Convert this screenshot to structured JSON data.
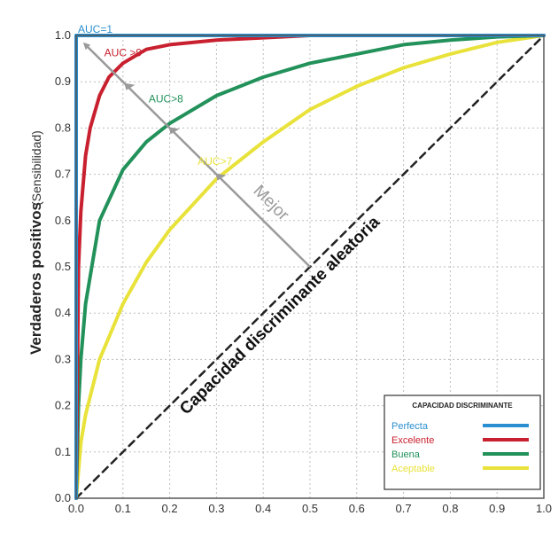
{
  "chart_data": {
    "type": "line",
    "ylabel": "Verdaderos positivos",
    "ylabel_sub": "(Sensibilidad)",
    "xlim": [
      0,
      1
    ],
    "ylim": [
      0,
      1
    ],
    "x_ticks": [
      "0.0",
      "0.1",
      "0.2",
      "0.3",
      "0.4",
      "0.5",
      "0.6",
      "0.7",
      "0.8",
      "0.9",
      "1.0"
    ],
    "y_ticks": [
      "0.0",
      "0.1",
      "0.2",
      "0.3",
      "0.4",
      "0.5",
      "0.6",
      "0.7",
      "0.8",
      "0.9",
      "1.0"
    ],
    "grid": true,
    "series": [
      {
        "name": "Perfecta",
        "annotation": "AUC=1",
        "color": "#2a8fd0",
        "x": [
          0,
          0,
          1
        ],
        "y": [
          0,
          1,
          1
        ]
      },
      {
        "name": "Excelente",
        "annotation": "AUC >9",
        "color": "#c8202e",
        "x": [
          0,
          0.005,
          0.01,
          0.02,
          0.03,
          0.05,
          0.07,
          0.1,
          0.15,
          0.2,
          0.3,
          0.4,
          0.5,
          0.6,
          0.7,
          0.8,
          0.9,
          1.0
        ],
        "y": [
          0,
          0.5,
          0.62,
          0.74,
          0.8,
          0.87,
          0.91,
          0.94,
          0.97,
          0.98,
          0.99,
          0.995,
          1.0,
          1.0,
          1.0,
          1.0,
          1.0,
          1.0
        ]
      },
      {
        "name": "Buena",
        "annotation": "AUC>8",
        "color": "#22915a",
        "x": [
          0,
          0.005,
          0.01,
          0.02,
          0.05,
          0.1,
          0.15,
          0.2,
          0.3,
          0.4,
          0.5,
          0.6,
          0.7,
          0.8,
          0.9,
          1.0
        ],
        "y": [
          0,
          0.2,
          0.3,
          0.42,
          0.6,
          0.71,
          0.77,
          0.81,
          0.87,
          0.91,
          0.94,
          0.96,
          0.98,
          0.99,
          0.997,
          1.0
        ]
      },
      {
        "name": "Aceptable",
        "annotation": "AUC>7",
        "color": "#e8e23a",
        "x": [
          0,
          0.01,
          0.02,
          0.05,
          0.1,
          0.15,
          0.2,
          0.3,
          0.4,
          0.5,
          0.6,
          0.7,
          0.8,
          0.9,
          1.0
        ],
        "y": [
          0,
          0.12,
          0.18,
          0.3,
          0.42,
          0.51,
          0.58,
          0.69,
          0.77,
          0.84,
          0.89,
          0.93,
          0.96,
          0.985,
          1.0
        ]
      },
      {
        "name": "",
        "annotation": "Capacidad discriminante aleatoria",
        "color": "#222222",
        "style": "dashed",
        "x": [
          0,
          1
        ],
        "y": [
          0,
          1
        ]
      }
    ],
    "arrow": {
      "label": "Mejor",
      "color": "#9a9a9a",
      "from": [
        0.5,
        0.5
      ],
      "to": [
        0.01,
        0.99
      ]
    },
    "legend": {
      "title": "CAPACIDAD DISCRIMINANTE",
      "position": "bottom-right",
      "entries": [
        "Perfecta",
        "Excelente",
        "Buena",
        "Aceptable"
      ]
    }
  }
}
